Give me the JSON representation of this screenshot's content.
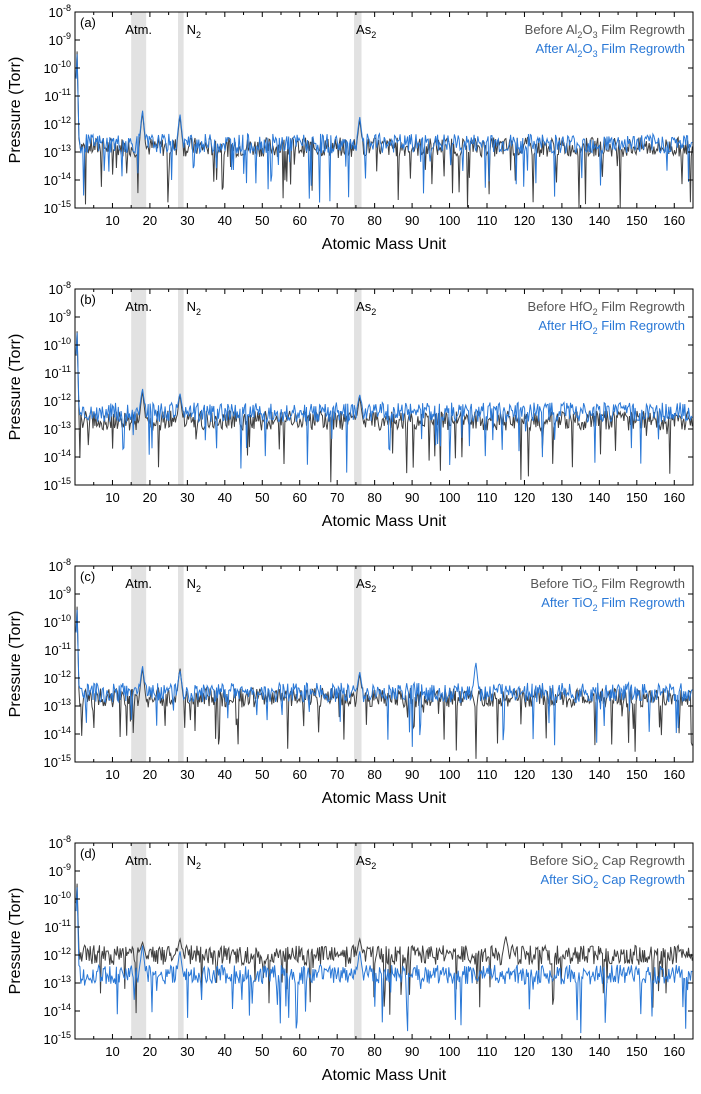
{
  "chart_data": [
    {
      "type": "line",
      "panel_label": "(a)",
      "xlabel": "Atomic Mass Unit",
      "ylabel": "Pressure (Torr)",
      "xlim": [
        0,
        165
      ],
      "ylim": [
        1e-15,
        1e-08
      ],
      "yscale": "log",
      "x_ticks": [
        10,
        20,
        30,
        40,
        50,
        60,
        70,
        80,
        90,
        100,
        110,
        120,
        130,
        140,
        150,
        160
      ],
      "y_ticks": [
        {
          "mantissa": "10",
          "exp": "-15"
        },
        {
          "mantissa": "10",
          "exp": "-14"
        },
        {
          "mantissa": "10",
          "exp": "-13"
        },
        {
          "mantissa": "10",
          "exp": "-12"
        },
        {
          "mantissa": "10",
          "exp": "-11"
        },
        {
          "mantissa": "10",
          "exp": "-10"
        },
        {
          "mantissa": "10",
          "exp": "-9"
        },
        {
          "mantissa": "10",
          "exp": "-8"
        }
      ],
      "regions": [
        {
          "label_main": "Atm.",
          "label_sub": "",
          "x0": 15,
          "x1": 19
        },
        {
          "label_main": "N",
          "label_sub": "2",
          "x0": 27.5,
          "x1": 29
        },
        {
          "label_main": "As",
          "label_sub": "2",
          "x0": 74.5,
          "x1": 76.5
        }
      ],
      "legend_position": "top-right",
      "grid": false,
      "series": [
        {
          "name_parts": [
            "Before Al",
            "2",
            "O",
            "3",
            " Film Regrowth"
          ],
          "color": "#3f3f3f",
          "baseline": 1.5e-13,
          "peaks": [
            {
              "x": 0.5,
              "y": 8e-10
            },
            {
              "x": 18,
              "y": 3e-12
            },
            {
              "x": 28,
              "y": 2e-12
            },
            {
              "x": 76,
              "y": 1.5e-12
            }
          ]
        },
        {
          "name_parts": [
            "After Al",
            "2",
            "O",
            "3",
            " Film Regrowth"
          ],
          "color": "#2a78d6",
          "baseline": 2e-13,
          "peaks": [
            {
              "x": 0.5,
              "y": 6e-10
            },
            {
              "x": 18,
              "y": 3.5e-12
            },
            {
              "x": 28,
              "y": 2.5e-12
            },
            {
              "x": 76,
              "y": 2e-12
            }
          ]
        }
      ]
    },
    {
      "type": "line",
      "panel_label": "(b)",
      "xlabel": "Atomic Mass Unit",
      "ylabel": "Pressure (Torr)",
      "xlim": [
        0,
        165
      ],
      "ylim": [
        1e-15,
        1e-08
      ],
      "yscale": "log",
      "x_ticks": [
        10,
        20,
        30,
        40,
        50,
        60,
        70,
        80,
        90,
        100,
        110,
        120,
        130,
        140,
        150,
        160
      ],
      "y_ticks": [
        {
          "mantissa": "10",
          "exp": "-15"
        },
        {
          "mantissa": "10",
          "exp": "-14"
        },
        {
          "mantissa": "10",
          "exp": "-13"
        },
        {
          "mantissa": "10",
          "exp": "-12"
        },
        {
          "mantissa": "10",
          "exp": "-11"
        },
        {
          "mantissa": "10",
          "exp": "-10"
        },
        {
          "mantissa": "10",
          "exp": "-9"
        },
        {
          "mantissa": "10",
          "exp": "-8"
        }
      ],
      "regions": [
        {
          "label_main": "Atm.",
          "label_sub": "",
          "x0": 15,
          "x1": 19
        },
        {
          "label_main": "N",
          "label_sub": "2",
          "x0": 27.5,
          "x1": 29
        },
        {
          "label_main": "As",
          "label_sub": "2",
          "x0": 74.5,
          "x1": 76.5
        }
      ],
      "legend_position": "top-right",
      "grid": false,
      "series": [
        {
          "name_parts": [
            "Before HfO",
            "2",
            " Film Regrowth"
          ],
          "color": "#3f3f3f",
          "baseline": 2e-13,
          "peaks": [
            {
              "x": 0.5,
              "y": 6e-10
            },
            {
              "x": 18,
              "y": 2.5e-12
            },
            {
              "x": 28,
              "y": 1.8e-12
            },
            {
              "x": 76,
              "y": 1.5e-12
            }
          ]
        },
        {
          "name_parts": [
            "After HfO",
            "2",
            " Film Regrowth"
          ],
          "color": "#2a78d6",
          "baseline": 4e-13,
          "peaks": [
            {
              "x": 0.5,
              "y": 5e-10
            },
            {
              "x": 18,
              "y": 3e-12
            },
            {
              "x": 28,
              "y": 2e-12
            },
            {
              "x": 76,
              "y": 1.8e-12
            }
          ]
        }
      ]
    },
    {
      "type": "line",
      "panel_label": "(c)",
      "xlabel": "Atomic Mass Unit",
      "ylabel": "Pressure (Torr)",
      "xlim": [
        0,
        165
      ],
      "ylim": [
        1e-15,
        1e-08
      ],
      "yscale": "log",
      "x_ticks": [
        10,
        20,
        30,
        40,
        50,
        60,
        70,
        80,
        90,
        100,
        110,
        120,
        130,
        140,
        150,
        160
      ],
      "y_ticks": [
        {
          "mantissa": "10",
          "exp": "-15"
        },
        {
          "mantissa": "10",
          "exp": "-14"
        },
        {
          "mantissa": "10",
          "exp": "-13"
        },
        {
          "mantissa": "10",
          "exp": "-12"
        },
        {
          "mantissa": "10",
          "exp": "-11"
        },
        {
          "mantissa": "10",
          "exp": "-10"
        },
        {
          "mantissa": "10",
          "exp": "-9"
        },
        {
          "mantissa": "10",
          "exp": "-8"
        }
      ],
      "regions": [
        {
          "label_main": "Atm.",
          "label_sub": "",
          "x0": 15,
          "x1": 19
        },
        {
          "label_main": "N",
          "label_sub": "2",
          "x0": 27.5,
          "x1": 29
        },
        {
          "label_main": "As",
          "label_sub": "2",
          "x0": 74.5,
          "x1": 76.5
        }
      ],
      "legend_position": "top-right",
      "grid": false,
      "series": [
        {
          "name_parts": [
            "Before TiO",
            "2",
            " Film Regrowth"
          ],
          "color": "#3f3f3f",
          "baseline": 2e-13,
          "peaks": [
            {
              "x": 0.5,
              "y": 7e-10
            },
            {
              "x": 18,
              "y": 2.5e-12
            },
            {
              "x": 28,
              "y": 2.5e-12
            },
            {
              "x": 76,
              "y": 1.5e-12
            }
          ]
        },
        {
          "name_parts": [
            "After TiO",
            "2",
            " Film Regrowth"
          ],
          "color": "#2a78d6",
          "baseline": 3e-13,
          "peaks": [
            {
              "x": 0.5,
              "y": 5e-10
            },
            {
              "x": 18,
              "y": 3e-12
            },
            {
              "x": 28,
              "y": 2e-12
            },
            {
              "x": 76,
              "y": 1.8e-12
            },
            {
              "x": 107,
              "y": 4e-12
            }
          ]
        }
      ]
    },
    {
      "type": "line",
      "panel_label": "(d)",
      "xlabel": "Atomic Mass Unit",
      "ylabel": "Pressure (Torr)",
      "xlim": [
        0,
        165
      ],
      "ylim": [
        1e-15,
        1e-08
      ],
      "yscale": "log",
      "x_ticks": [
        10,
        20,
        30,
        40,
        50,
        60,
        70,
        80,
        90,
        100,
        110,
        120,
        130,
        140,
        150,
        160
      ],
      "y_ticks": [
        {
          "mantissa": "10",
          "exp": "-15"
        },
        {
          "mantissa": "10",
          "exp": "-14"
        },
        {
          "mantissa": "10",
          "exp": "-13"
        },
        {
          "mantissa": "10",
          "exp": "-12"
        },
        {
          "mantissa": "10",
          "exp": "-11"
        },
        {
          "mantissa": "10",
          "exp": "-10"
        },
        {
          "mantissa": "10",
          "exp": "-9"
        },
        {
          "mantissa": "10",
          "exp": "-8"
        }
      ],
      "regions": [
        {
          "label_main": "Atm.",
          "label_sub": "",
          "x0": 15,
          "x1": 19
        },
        {
          "label_main": "N",
          "label_sub": "2",
          "x0": 27.5,
          "x1": 29
        },
        {
          "label_main": "As",
          "label_sub": "2",
          "x0": 74.5,
          "x1": 76.5
        }
      ],
      "legend_position": "top-right",
      "grid": false,
      "series": [
        {
          "name_parts": [
            "Before SiO",
            "2",
            " Cap Regrowth"
          ],
          "color": "#3f3f3f",
          "baseline": 1e-12,
          "peaks": [
            {
              "x": 0.5,
              "y": 6e-10
            },
            {
              "x": 18,
              "y": 3e-12
            },
            {
              "x": 28,
              "y": 4e-12
            },
            {
              "x": 76,
              "y": 4e-12
            },
            {
              "x": 115,
              "y": 5e-12
            }
          ]
        },
        {
          "name_parts": [
            "After SiO",
            "2",
            " Cap Regrowth"
          ],
          "color": "#2a78d6",
          "baseline": 2e-13,
          "peaks": [
            {
              "x": 0.5,
              "y": 5e-10
            },
            {
              "x": 18,
              "y": 2.5e-12
            },
            {
              "x": 28,
              "y": 1.5e-12
            },
            {
              "x": 76,
              "y": 1.5e-12
            }
          ]
        }
      ]
    }
  ]
}
